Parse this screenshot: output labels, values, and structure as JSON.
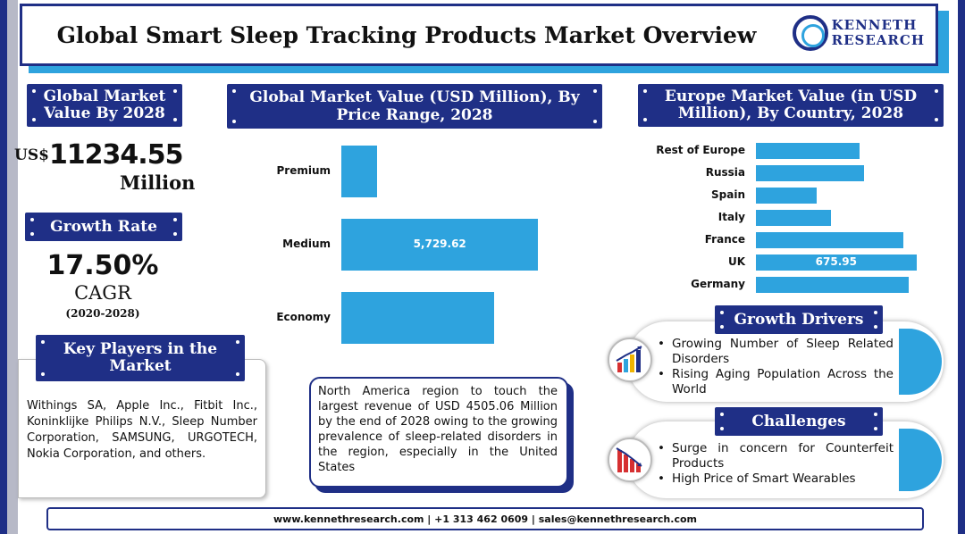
{
  "header": {
    "title": "Global Smart Sleep Tracking Products Market Overview",
    "logo_line1": "KENNETH",
    "logo_line2": "RESEARCH"
  },
  "market_value": {
    "heading": "Global Market Value By 2028",
    "currency": "US$",
    "value": "11234.55",
    "unit": "Million"
  },
  "growth": {
    "heading": "Growth Rate",
    "value": "17.50%",
    "label": "CAGR",
    "range": "(2020-2028)"
  },
  "key_players": {
    "heading": "Key Players in the Market",
    "text": "Withings SA, Apple Inc., Fitbit Inc., Koninklijke Philips N.V., Sleep Number Corporation, SAMSUNG, URGOTECH, Nokia Corporation, and others."
  },
  "price_chart": {
    "heading": "Global Market Value (USD Million), By Price Range, 2028"
  },
  "europe_chart": {
    "heading": "Europe Market Value (in USD Million), By Country, 2028"
  },
  "chart_data": [
    {
      "type": "bar",
      "orientation": "horizontal",
      "title": "Global Market Value (USD Million), By Price Range, 2028",
      "categories": [
        "Premium",
        "Medium",
        "Economy"
      ],
      "values": [
        1050,
        5729.62,
        4455
      ],
      "data_labels": [
        "",
        "5,729.62",
        ""
      ],
      "xlim": [
        0,
        6500
      ],
      "grid": false
    },
    {
      "type": "bar",
      "orientation": "horizontal",
      "title": "Europe Market Value (in USD Million), By Country, 2028",
      "categories": [
        "Rest of Europe",
        "Russia",
        "Spain",
        "Italy",
        "France",
        "UK",
        "Germany"
      ],
      "values": [
        435,
        455,
        255,
        315,
        620,
        675.95,
        645
      ],
      "data_labels": [
        "",
        "",
        "",
        "",
        "",
        "675.95",
        ""
      ],
      "xlim": [
        0,
        700
      ],
      "grid": false
    }
  ],
  "north_america": {
    "text": "North America region to touch the largest revenue of USD 4505.06 Million by the end of 2028 owing to the growing prevalence of sleep-related disorders in the region, especially in the United States"
  },
  "drivers": {
    "heading": "Growth Drivers",
    "items": [
      "Growing Number of Sleep Related Disorders",
      "Rising Aging Population Across the World"
    ]
  },
  "challenges": {
    "heading": "Challenges",
    "items": [
      "Surge in concern for Counterfeit Products",
      "High Price of Smart Wearables"
    ]
  },
  "footer": {
    "text": "www.kennethresearch.com | +1 313 462 0609 | sales@kennethresearch.com"
  },
  "colors": {
    "navy": "#1f2f86",
    "blue": "#2ea3de"
  }
}
